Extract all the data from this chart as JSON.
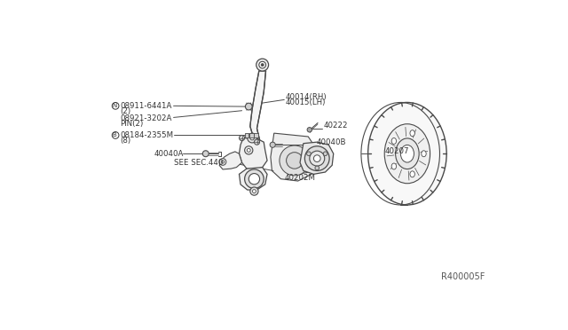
{
  "bg_color": "#ffffff",
  "line_color": "#4a4a4a",
  "text_color": "#333333",
  "fig_width": 6.4,
  "fig_height": 3.72,
  "dpi": 100,
  "ref_code": "R400005F",
  "labels": {
    "N_label": "N 08911-6441A",
    "N_sub": "  (2)",
    "pin_label": "08921-3202A",
    "pin_sub": "PIN(2)",
    "B_label": "B 08184-2355M",
    "B_sub": "  (8)",
    "part40014": "40014(RH)",
    "part40015": "40015(LH)",
    "part4004B": "40040B",
    "part40222": "40222",
    "part40040A": "40040A",
    "sec440": "SEE SEC.440",
    "part40202M": "40202M",
    "part40207": "40207"
  }
}
